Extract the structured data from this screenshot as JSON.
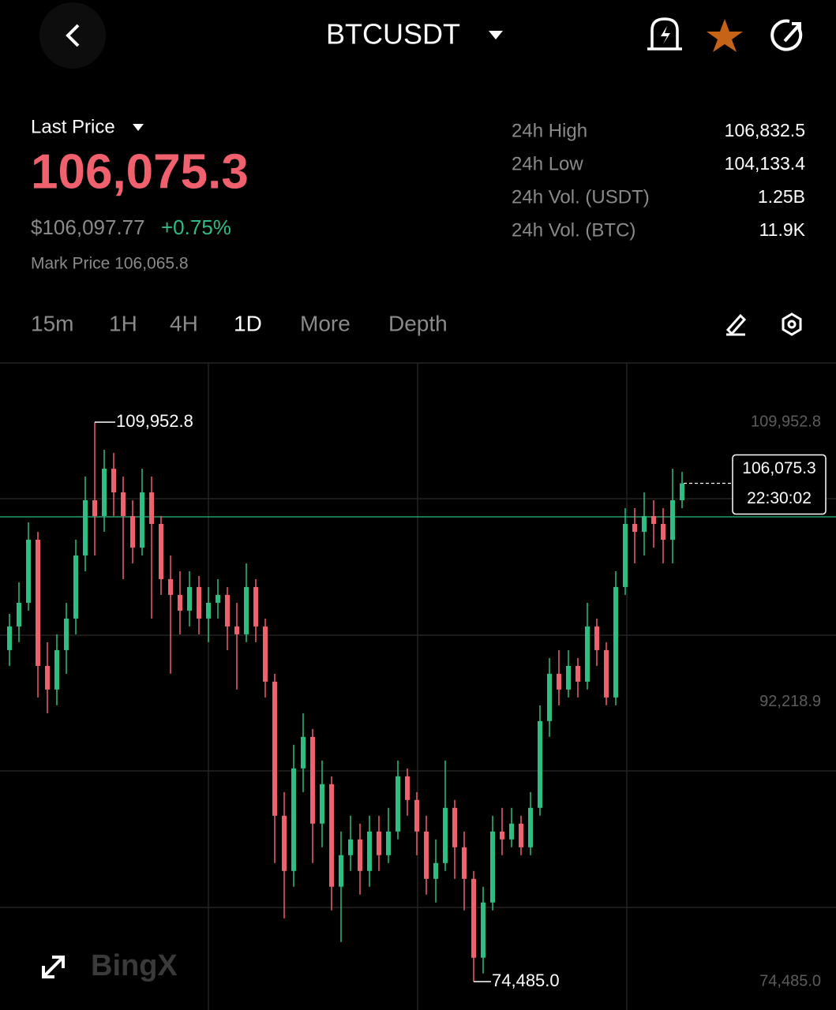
{
  "header": {
    "title": "BTCUSDT"
  },
  "price": {
    "label": "Last Price",
    "last": "106,075.3",
    "usd": "$106,097.77",
    "change": "+0.75%",
    "mark": "Mark Price 106,065.8"
  },
  "stats": [
    {
      "label": "24h High",
      "value": "106,832.5"
    },
    {
      "label": "24h Low",
      "value": "104,133.4"
    },
    {
      "label": "24h Vol. (USDT)",
      "value": "1.25B"
    },
    {
      "label": "24h Vol. (BTC)",
      "value": "11.9K"
    }
  ],
  "tabs": [
    "15m",
    "1H",
    "4H",
    "1D",
    "More",
    "Depth"
  ],
  "watermark": "BingX",
  "chart_data": {
    "type": "candlestick",
    "up_color": "#2ebd85",
    "down_color": "#f0616d",
    "ylim": [
      72684,
      113704
    ],
    "yticks": [
      {
        "value": 74485.0,
        "label": "74,485.0"
      },
      {
        "value": 92218.9,
        "label": "92,218.9"
      },
      {
        "value": 109952.8,
        "label": "109,952.8"
      }
    ],
    "max_label": {
      "value": 109952.8,
      "label": "109,952.8"
    },
    "min_label": {
      "value": 74485.0,
      "label": "74,485.0"
    },
    "last_price": {
      "value": 106075.3,
      "label": "106,075.3"
    },
    "countdown": "22:30:02",
    "open": [
      95500,
      97000,
      98500,
      102500,
      94500,
      93000,
      95500,
      97500,
      101500,
      105000,
      104000,
      107000,
      105500,
      104000,
      102000,
      105500,
      103500,
      100000,
      99000,
      98000,
      99500,
      97500,
      98500,
      99000,
      97000,
      96500,
      99500,
      97000,
      93500,
      85000,
      81500,
      88000,
      90000,
      84500,
      87000,
      80500,
      82500,
      83500,
      81500,
      84000,
      82500,
      84000,
      87500,
      86000,
      84000,
      81000,
      82000,
      85500,
      83000,
      81000,
      76000,
      79500,
      84000,
      83500,
      84500,
      83000,
      85500,
      91000,
      94000,
      93000,
      94500,
      93500,
      97000,
      95500,
      92500,
      99500,
      103500,
      103000,
      104000,
      103500,
      102500,
      105000
    ],
    "high": [
      97800,
      99800,
      103600,
      103000,
      96000,
      96500,
      98500,
      102500,
      106500,
      109952.8,
      108200,
      108000,
      106500,
      105000,
      107000,
      106500,
      104000,
      101500,
      100500,
      100500,
      100200,
      99500,
      100000,
      99500,
      98500,
      101000,
      100000,
      97500,
      94000,
      86500,
      89500,
      91500,
      90500,
      88500,
      87500,
      84000,
      85000,
      84500,
      85000,
      85000,
      85500,
      88500,
      88000,
      86500,
      85000,
      83500,
      88500,
      86000,
      84000,
      81500,
      80500,
      85000,
      85500,
      85500,
      85000,
      86500,
      92000,
      95000,
      95500,
      95500,
      95000,
      98500,
      97500,
      96000,
      100500,
      104500,
      104500,
      105500,
      105000,
      104500,
      107000,
      106800
    ],
    "low": [
      94500,
      96000,
      98000,
      92500,
      91500,
      92000,
      94000,
      96500,
      100500,
      101500,
      103000,
      104000,
      100000,
      101000,
      101500,
      97500,
      99000,
      94000,
      96500,
      97000,
      96500,
      96000,
      97500,
      95500,
      93000,
      96000,
      96000,
      92500,
      82000,
      78500,
      80500,
      86500,
      82000,
      83000,
      79000,
      77000,
      81500,
      80000,
      80500,
      81500,
      82000,
      83500,
      85000,
      82500,
      80000,
      79500,
      81500,
      81000,
      79000,
      74485,
      75000,
      79000,
      82500,
      83000,
      82500,
      82500,
      85000,
      90000,
      92000,
      92500,
      92500,
      93000,
      94500,
      92000,
      92000,
      99000,
      101000,
      101500,
      102000,
      101000,
      101000,
      104500
    ],
    "close": [
      97000,
      98500,
      102500,
      94500,
      93000,
      95500,
      97500,
      101500,
      105000,
      104000,
      107000,
      105500,
      104000,
      102000,
      105500,
      103500,
      100000,
      99000,
      98000,
      99500,
      97500,
      98500,
      99000,
      97000,
      96500,
      99500,
      97000,
      93500,
      85000,
      81500,
      88000,
      90000,
      84500,
      87000,
      80500,
      82500,
      83500,
      81500,
      84000,
      82500,
      84000,
      87500,
      86000,
      84000,
      81000,
      82000,
      85500,
      83000,
      81000,
      76000,
      79500,
      84000,
      83500,
      84500,
      83000,
      85500,
      91000,
      94000,
      93000,
      94500,
      93500,
      97000,
      95500,
      92500,
      99500,
      103500,
      103000,
      104000,
      103500,
      102500,
      105000,
      106075.3
    ]
  }
}
